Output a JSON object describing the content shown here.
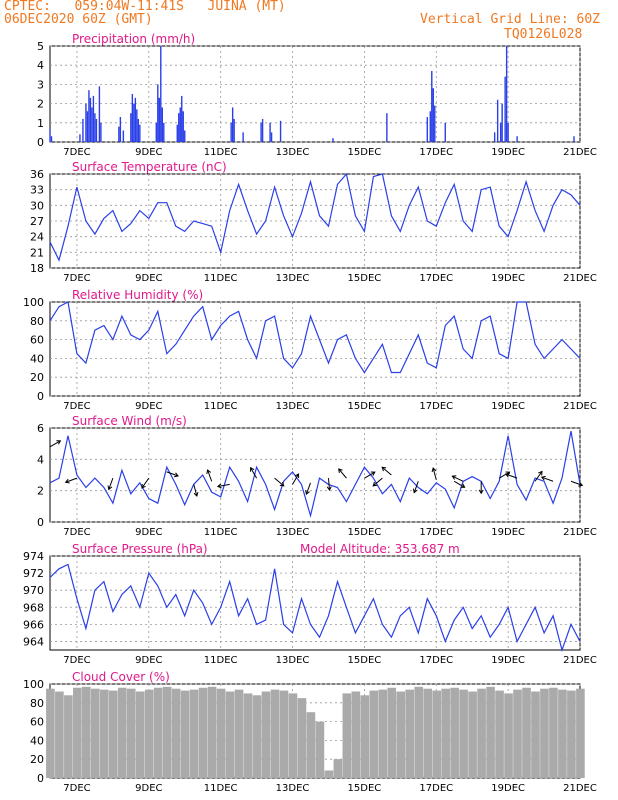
{
  "header": {
    "line1": "CPTEC:   059:04W-11:41S   JUINA (MT)",
    "line2": "06DEC2020 60Z (GMT)",
    "grid_note": "Vertical Grid Line: 60Z",
    "code": "TQ0126L028"
  },
  "colors": {
    "header": "#f07820",
    "title": "#e0198a",
    "series": "#2a3fe8",
    "cloud": "#aaaaaa",
    "axis": "#000000"
  },
  "x_ticks": [
    {
      "label": "7DEC",
      "t": 18
    },
    {
      "label": "9DEC",
      "t": 66
    },
    {
      "label": "11DEC",
      "t": 114
    },
    {
      "label": "13DEC",
      "t": 162
    },
    {
      "label": "15DEC",
      "t": 210
    },
    {
      "label": "17DEC",
      "t": 258
    },
    {
      "label": "19DEC",
      "t": 306
    },
    {
      "label": "21DEC",
      "t": 354
    }
  ],
  "chart_data": [
    {
      "type": "bar",
      "title": "Precipitation (mm/h)",
      "ylim": [
        0,
        5
      ],
      "yticks": [
        0,
        1,
        2,
        3,
        4,
        5
      ],
      "bars": [
        [
          0,
          0.7
        ],
        [
          1,
          0.3
        ],
        [
          20,
          0.4
        ],
        [
          22,
          1.2
        ],
        [
          24,
          2.0
        ],
        [
          25,
          1.6
        ],
        [
          26,
          2.7
        ],
        [
          27,
          2.3
        ],
        [
          28,
          1.8
        ],
        [
          29,
          2.4
        ],
        [
          30,
          1.5
        ],
        [
          31,
          1.2
        ],
        [
          33,
          2.9
        ],
        [
          34,
          1.0
        ],
        [
          46,
          0.8
        ],
        [
          47,
          1.3
        ],
        [
          49,
          0.6
        ],
        [
          54,
          1.5
        ],
        [
          55,
          2.5
        ],
        [
          56,
          2.0
        ],
        [
          57,
          2.3
        ],
        [
          58,
          1.7
        ],
        [
          59,
          1.2
        ],
        [
          60,
          0.9
        ],
        [
          71,
          1.0
        ],
        [
          72,
          3.0
        ],
        [
          73,
          2.3
        ],
        [
          74,
          5.0
        ],
        [
          75,
          1.8
        ],
        [
          76,
          1.0
        ],
        [
          85,
          0.9
        ],
        [
          86,
          1.5
        ],
        [
          87,
          1.8
        ],
        [
          88,
          2.4
        ],
        [
          89,
          1.6
        ],
        [
          90,
          0.6
        ],
        [
          121,
          1.0
        ],
        [
          122,
          1.8
        ],
        [
          123,
          1.2
        ],
        [
          129,
          0.5
        ],
        [
          141,
          1.0
        ],
        [
          142,
          1.2
        ],
        [
          147,
          1.0
        ],
        [
          148,
          0.5
        ],
        [
          154,
          1.1
        ],
        [
          189,
          0.2
        ],
        [
          225,
          1.5
        ],
        [
          252,
          1.3
        ],
        [
          254,
          1.6
        ],
        [
          255,
          3.7
        ],
        [
          256,
          2.8
        ],
        [
          257,
          1.9
        ],
        [
          264,
          1.0
        ],
        [
          297,
          0.5
        ],
        [
          299,
          2.2
        ],
        [
          301,
          1.0
        ],
        [
          302,
          2.0
        ],
        [
          304,
          3.4
        ],
        [
          305,
          5.0
        ],
        [
          306,
          1.0
        ],
        [
          312,
          0.3
        ],
        [
          350,
          0.3
        ]
      ]
    },
    {
      "type": "line",
      "title": "Surface Temperature (nC)",
      "ylim": [
        18,
        36
      ],
      "yticks": [
        18,
        21,
        24,
        27,
        30,
        33,
        36
      ],
      "x": [
        0,
        6,
        12,
        18,
        24,
        30,
        36,
        42,
        48,
        54,
        60,
        66,
        72,
        78,
        84,
        90,
        96,
        102,
        108,
        114,
        120,
        126,
        132,
        138,
        144,
        150,
        156,
        162,
        168,
        174,
        180,
        186,
        192,
        198,
        204,
        210,
        216,
        222,
        228,
        234,
        240,
        246,
        252,
        258,
        264,
        270,
        276,
        282,
        288,
        294,
        300,
        306,
        312,
        318,
        324,
        330,
        336,
        342,
        348,
        354
      ],
      "y": [
        23,
        19.5,
        26,
        33.5,
        27,
        24.5,
        27.5,
        29,
        25,
        26.5,
        29,
        27.5,
        30.5,
        30.5,
        26,
        25,
        27,
        26.5,
        26,
        21,
        29,
        34,
        29,
        24.5,
        27,
        33.5,
        28,
        24,
        28.5,
        34.5,
        28,
        26,
        34,
        36,
        28,
        25,
        35.5,
        36,
        28,
        25,
        30,
        33.5,
        27,
        26,
        30.5,
        34,
        27,
        25,
        33,
        33.5,
        26,
        24,
        29,
        34.5,
        29,
        25,
        30,
        33,
        32,
        30
      ]
    },
    {
      "type": "line",
      "title": "Relative Humidity (%)",
      "ylim": [
        0,
        100
      ],
      "yticks": [
        0,
        20,
        40,
        60,
        80,
        100
      ],
      "x": [
        0,
        6,
        12,
        18,
        24,
        30,
        36,
        42,
        48,
        54,
        60,
        66,
        72,
        78,
        84,
        90,
        96,
        102,
        108,
        114,
        120,
        126,
        132,
        138,
        144,
        150,
        156,
        162,
        168,
        174,
        180,
        186,
        192,
        198,
        204,
        210,
        216,
        222,
        228,
        234,
        240,
        246,
        252,
        258,
        264,
        270,
        276,
        282,
        288,
        294,
        300,
        306,
        312,
        318,
        324,
        330,
        336,
        342,
        348,
        354
      ],
      "y": [
        80,
        95,
        100,
        45,
        35,
        70,
        75,
        60,
        85,
        65,
        60,
        70,
        90,
        45,
        55,
        70,
        85,
        95,
        60,
        75,
        85,
        90,
        60,
        40,
        80,
        85,
        40,
        30,
        45,
        85,
        60,
        35,
        60,
        65,
        40,
        25,
        40,
        55,
        25,
        25,
        45,
        65,
        35,
        30,
        75,
        85,
        50,
        40,
        80,
        85,
        45,
        40,
        100,
        100,
        55,
        40,
        50,
        60,
        50,
        40
      ]
    },
    {
      "type": "line",
      "title": "Surface Wind (m/s)",
      "ylim": [
        0,
        6
      ],
      "yticks": [
        0,
        2,
        4,
        6
      ],
      "x": [
        0,
        6,
        12,
        18,
        24,
        30,
        36,
        42,
        48,
        54,
        60,
        66,
        72,
        78,
        84,
        90,
        96,
        102,
        108,
        114,
        120,
        126,
        132,
        138,
        144,
        150,
        156,
        162,
        168,
        174,
        180,
        186,
        192,
        198,
        204,
        210,
        216,
        222,
        228,
        234,
        240,
        246,
        252,
        258,
        264,
        270,
        276,
        282,
        288,
        294,
        300,
        306,
        312,
        318,
        324,
        330,
        336,
        342,
        348,
        354
      ],
      "y": [
        2.5,
        2.8,
        5.5,
        3,
        2.2,
        2.8,
        2.2,
        1.2,
        3.3,
        1.8,
        2.5,
        1.5,
        1.2,
        3.5,
        2.4,
        1.1,
        2.4,
        3,
        1.9,
        1.6,
        3.5,
        2.6,
        1.3,
        3.5,
        2.4,
        0.8,
        2.6,
        3.2,
        2.4,
        0.4,
        2.8,
        2.4,
        2.2,
        1.3,
        2.4,
        3.5,
        2.8,
        1.8,
        2.4,
        1.3,
        2.8,
        2.2,
        1.8,
        2.5,
        2.1,
        0.9,
        2.6,
        2.9,
        2.6,
        1.5,
        2.6,
        5.5,
        2.4,
        1.4,
        2.8,
        2.6,
        1.2,
        2.8,
        5.8,
        2.4
      ],
      "vectors": [
        [
          0,
          4.8,
          60
        ],
        [
          18,
          2.8,
          250
        ],
        [
          42,
          2.8,
          200
        ],
        [
          66,
          2.8,
          215
        ],
        [
          78,
          3.2,
          110
        ],
        [
          96,
          2.4,
          165
        ],
        [
          108,
          2.6,
          340
        ],
        [
          120,
          2.4,
          260
        ],
        [
          138,
          2.8,
          330
        ],
        [
          150,
          2.8,
          130
        ],
        [
          162,
          2.4,
          30
        ],
        [
          174,
          2.5,
          200
        ],
        [
          186,
          2.8,
          175
        ],
        [
          198,
          2.8,
          320
        ],
        [
          210,
          2.8,
          60
        ],
        [
          222,
          2.8,
          230
        ],
        [
          228,
          3.0,
          310
        ],
        [
          246,
          2.6,
          200
        ],
        [
          258,
          2.7,
          345
        ],
        [
          270,
          2.6,
          120
        ],
        [
          276,
          2.6,
          295
        ],
        [
          288,
          2.6,
          180
        ],
        [
          300,
          2.8,
          60
        ],
        [
          312,
          2.8,
          290
        ],
        [
          324,
          2.6,
          35
        ],
        [
          336,
          2.6,
          290
        ],
        [
          348,
          2.6,
          110
        ]
      ]
    },
    {
      "type": "line",
      "title": "Surface Pressure (hPa)",
      "subtitle": "Model Altitude: 353.687 m",
      "ylim": [
        963,
        974
      ],
      "yticks": [
        964,
        966,
        968,
        970,
        972,
        974
      ],
      "x": [
        0,
        6,
        12,
        18,
        24,
        30,
        36,
        42,
        48,
        54,
        60,
        66,
        72,
        78,
        84,
        90,
        96,
        102,
        108,
        114,
        120,
        126,
        132,
        138,
        144,
        150,
        156,
        162,
        168,
        174,
        180,
        186,
        192,
        198,
        204,
        210,
        216,
        222,
        228,
        234,
        240,
        246,
        252,
        258,
        264,
        270,
        276,
        282,
        288,
        294,
        300,
        306,
        312,
        318,
        324,
        330,
        336,
        342,
        348,
        354
      ],
      "y": [
        971.5,
        972.5,
        973,
        969,
        965.5,
        970,
        971,
        967.5,
        969.5,
        970.5,
        968,
        972,
        970.5,
        968,
        969.5,
        967,
        970,
        968.5,
        966,
        968,
        971,
        967,
        969,
        966,
        966.5,
        972.5,
        966,
        965,
        969,
        966,
        964.5,
        967,
        971,
        968,
        965,
        967,
        969,
        966,
        964.5,
        967,
        968,
        965,
        969,
        967,
        964,
        966.5,
        968,
        965.5,
        967,
        964.5,
        966,
        968,
        964,
        966,
        968,
        965,
        967,
        963,
        966,
        964
      ]
    },
    {
      "type": "bar",
      "title": "Cloud Cover (%)",
      "ylim": [
        0,
        100
      ],
      "yticks": [
        0,
        20,
        40,
        60,
        80,
        100
      ],
      "x": [
        0,
        6,
        12,
        18,
        24,
        30,
        36,
        42,
        48,
        54,
        60,
        66,
        72,
        78,
        84,
        90,
        96,
        102,
        108,
        114,
        120,
        126,
        132,
        138,
        144,
        150,
        156,
        162,
        168,
        174,
        180,
        186,
        192,
        198,
        204,
        210,
        216,
        222,
        228,
        234,
        240,
        246,
        252,
        258,
        264,
        270,
        276,
        282,
        288,
        294,
        300,
        306,
        312,
        318,
        324,
        330,
        336,
        342,
        348,
        354
      ],
      "y": [
        95,
        92,
        88,
        96,
        97,
        95,
        94,
        93,
        96,
        95,
        92,
        94,
        96,
        97,
        95,
        93,
        94,
        96,
        97,
        95,
        92,
        94,
        90,
        88,
        92,
        94,
        93,
        90,
        85,
        70,
        60,
        8,
        20,
        90,
        92,
        88,
        93,
        94,
        96,
        92,
        94,
        97,
        95,
        93,
        95,
        96,
        94,
        92,
        95,
        97,
        93,
        90,
        94,
        96,
        92,
        95,
        96,
        94,
        93,
        95
      ]
    }
  ]
}
